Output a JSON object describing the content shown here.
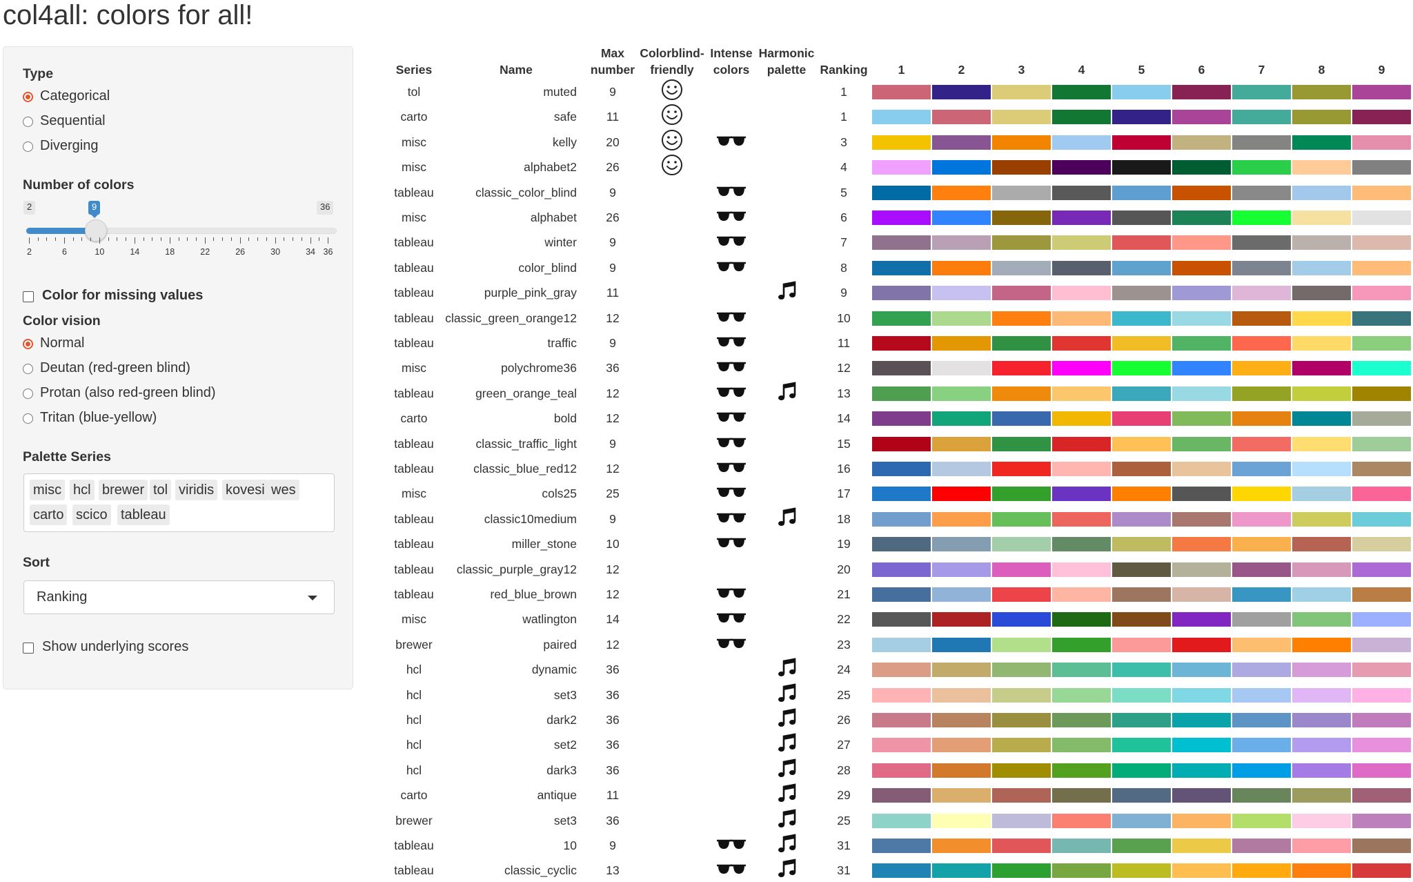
{
  "app": {
    "title": "col4all: colors for all!"
  },
  "sidebar": {
    "type": {
      "label": "Type",
      "options": [
        "Categorical",
        "Sequential",
        "Diverging"
      ],
      "selected": "Categorical"
    },
    "num_colors": {
      "label": "Number of colors",
      "min_label": "2",
      "value_label": "9",
      "max_label": "36",
      "value": 9,
      "min": 2,
      "max": 36,
      "tick_labels": [
        "2",
        "6",
        "10",
        "14",
        "18",
        "22",
        "26",
        "30",
        "34",
        "36"
      ]
    },
    "missing": {
      "label": "Color for missing values",
      "checked": false
    },
    "vision": {
      "label": "Color vision",
      "options": [
        "Normal",
        "Deutan (red-green blind)",
        "Protan (also red-green blind)",
        "Tritan (blue-yellow)"
      ],
      "selected": "Normal"
    },
    "series": {
      "label": "Palette Series",
      "chips": [
        "misc",
        "hcl",
        "brewer",
        "tol",
        "viridis",
        "kovesi",
        "wes",
        "carto",
        "scico",
        "tableau"
      ]
    },
    "sort": {
      "label": "Sort",
      "value": "Ranking"
    },
    "scores": {
      "label": "Show underlying scores",
      "checked": false
    }
  },
  "table": {
    "headers": {
      "series": "Series",
      "name": "Name",
      "max_l1": "Max",
      "max_l2": "number",
      "cbf_l1": "Colorblind-",
      "cbf_l2": "friendly",
      "int_l1": "Intense",
      "int_l2": "colors",
      "harm_l1": "Harmonic",
      "harm_l2": "palette",
      "ranking": "Ranking",
      "color_cols": [
        "1",
        "2",
        "3",
        "4",
        "5",
        "6",
        "7",
        "8",
        "9"
      ]
    },
    "rows": [
      {
        "series": "tol",
        "name": "muted",
        "max": "9",
        "cbf": true,
        "intense": false,
        "harmonic": false,
        "rank": "1",
        "colors": [
          "#CC6677",
          "#332288",
          "#DDCC77",
          "#117733",
          "#88CCEE",
          "#882255",
          "#44AA99",
          "#999933",
          "#AA4499"
        ]
      },
      {
        "series": "carto",
        "name": "safe",
        "max": "11",
        "cbf": true,
        "intense": false,
        "harmonic": false,
        "rank": "1",
        "colors": [
          "#88CCEE",
          "#CC6677",
          "#DDCC77",
          "#117733",
          "#332288",
          "#AA4499",
          "#44AA99",
          "#999933",
          "#882255"
        ]
      },
      {
        "series": "misc",
        "name": "kelly",
        "max": "20",
        "cbf": true,
        "intense": true,
        "harmonic": false,
        "rank": "3",
        "colors": [
          "#F3C300",
          "#875692",
          "#F38400",
          "#A1CAF1",
          "#BE0032",
          "#C2B280",
          "#848482",
          "#008856",
          "#E68FAC"
        ]
      },
      {
        "series": "misc",
        "name": "alphabet2",
        "max": "26",
        "cbf": true,
        "intense": false,
        "harmonic": false,
        "rank": "4",
        "colors": [
          "#F0A0FF",
          "#0075DC",
          "#993F00",
          "#4C005C",
          "#191919",
          "#005C31",
          "#2BCE48",
          "#FFCC99",
          "#808080"
        ]
      },
      {
        "series": "tableau",
        "name": "classic_color_blind",
        "max": "9",
        "cbf": false,
        "intense": true,
        "harmonic": false,
        "rank": "5",
        "colors": [
          "#006BA4",
          "#FF800E",
          "#ABABAB",
          "#595959",
          "#5F9ED1",
          "#C85200",
          "#898989",
          "#A2C8EC",
          "#FFBC79"
        ]
      },
      {
        "series": "misc",
        "name": "alphabet",
        "max": "26",
        "cbf": false,
        "intense": true,
        "harmonic": false,
        "rank": "6",
        "colors": [
          "#AA0DFE",
          "#3283FE",
          "#85660D",
          "#782AB6",
          "#565656",
          "#1C8356",
          "#16FF32",
          "#F7E1A0",
          "#E2E2E2"
        ]
      },
      {
        "series": "tableau",
        "name": "winter",
        "max": "9",
        "cbf": false,
        "intense": true,
        "harmonic": false,
        "rank": "7",
        "colors": [
          "#90728F",
          "#B9A0B4",
          "#9D983D",
          "#CECB76",
          "#E15759",
          "#FF9888",
          "#6B6B6B",
          "#BAB0AC",
          "#DDB8AD"
        ]
      },
      {
        "series": "tableau",
        "name": "color_blind",
        "max": "9",
        "cbf": false,
        "intense": true,
        "harmonic": false,
        "rank": "8",
        "colors": [
          "#1170AA",
          "#FC7D0B",
          "#A3ACB9",
          "#57606C",
          "#5FA2CE",
          "#C85200",
          "#7B848F",
          "#A3CCE9",
          "#FFBC79"
        ]
      },
      {
        "series": "tableau",
        "name": "purple_pink_gray",
        "max": "11",
        "cbf": false,
        "intense": false,
        "harmonic": true,
        "rank": "9",
        "colors": [
          "#8074A8",
          "#C6C1F0",
          "#C46487",
          "#FFBED1",
          "#9C9290",
          "#9F99D6",
          "#DFB6D7",
          "#746A6A",
          "#F797B9"
        ]
      },
      {
        "series": "tableau",
        "name": "classic_green_orange12",
        "max": "12",
        "cbf": false,
        "intense": true,
        "harmonic": false,
        "rank": "10",
        "colors": [
          "#32A251",
          "#ACD98D",
          "#FF7F0F",
          "#FFB977",
          "#3CB7CC",
          "#98D9E4",
          "#B85A0D",
          "#FFD94A",
          "#39737C"
        ]
      },
      {
        "series": "tableau",
        "name": "traffic",
        "max": "9",
        "cbf": false,
        "intense": true,
        "harmonic": false,
        "rank": "11",
        "colors": [
          "#B60A1C",
          "#E39802",
          "#309143",
          "#E03531",
          "#F0BD27",
          "#51B364",
          "#FF684C",
          "#FFDA66",
          "#8ACE7E"
        ]
      },
      {
        "series": "misc",
        "name": "polychrome36",
        "max": "36",
        "cbf": false,
        "intense": true,
        "harmonic": false,
        "rank": "12",
        "colors": [
          "#5A5156",
          "#E4E1E3",
          "#F6222E",
          "#FE00FA",
          "#16FF32",
          "#3283FE",
          "#FEAF16",
          "#B00068",
          "#1CFFCE"
        ]
      },
      {
        "series": "tableau",
        "name": "green_orange_teal",
        "max": "12",
        "cbf": false,
        "intense": true,
        "harmonic": true,
        "rank": "13",
        "colors": [
          "#4E9F50",
          "#87D180",
          "#EF8A0C",
          "#FCC66D",
          "#3CA8BC",
          "#98D9E4",
          "#94A323",
          "#C3CE3D",
          "#A08400"
        ]
      },
      {
        "series": "carto",
        "name": "bold",
        "max": "12",
        "cbf": false,
        "intense": true,
        "harmonic": false,
        "rank": "14",
        "colors": [
          "#7F3C8D",
          "#11A579",
          "#3969AC",
          "#F2B701",
          "#E73F74",
          "#80BA5A",
          "#E68310",
          "#008695",
          "#A5AA99"
        ]
      },
      {
        "series": "tableau",
        "name": "classic_traffic_light",
        "max": "9",
        "cbf": false,
        "intense": true,
        "harmonic": false,
        "rank": "15",
        "colors": [
          "#B10318",
          "#DBA13A",
          "#309343",
          "#D82526",
          "#FFC156",
          "#69B764",
          "#F26C64",
          "#FFDD71",
          "#9FCD99"
        ]
      },
      {
        "series": "tableau",
        "name": "classic_blue_red12",
        "max": "12",
        "cbf": false,
        "intense": true,
        "harmonic": false,
        "rank": "16",
        "colors": [
          "#2C69B0",
          "#B5C8E2",
          "#F02720",
          "#FFB6B0",
          "#AC613C",
          "#E9C39B",
          "#6BA3D6",
          "#B5DFFD",
          "#AC8763"
        ]
      },
      {
        "series": "misc",
        "name": "cols25",
        "max": "25",
        "cbf": false,
        "intense": true,
        "harmonic": false,
        "rank": "17",
        "colors": [
          "#1F78C8",
          "#FF0000",
          "#33A02C",
          "#6A33C2",
          "#FF7F00",
          "#565656",
          "#FFD700",
          "#A6CEE3",
          "#FB6496"
        ]
      },
      {
        "series": "tableau",
        "name": "classic10medium",
        "max": "9",
        "cbf": false,
        "intense": true,
        "harmonic": true,
        "rank": "18",
        "colors": [
          "#729ECE",
          "#FF9E4A",
          "#67BF5C",
          "#ED665D",
          "#AD8BC9",
          "#A8786E",
          "#ED97CA",
          "#CDCC5D",
          "#6DCCDA"
        ]
      },
      {
        "series": "tableau",
        "name": "miller_stone",
        "max": "10",
        "cbf": false,
        "intense": true,
        "harmonic": false,
        "rank": "19",
        "colors": [
          "#4F6980",
          "#849DB1",
          "#A2CEAA",
          "#638B66",
          "#BFBB60",
          "#F47942",
          "#FBB04E",
          "#B66353",
          "#D7CE9F"
        ]
      },
      {
        "series": "tableau",
        "name": "classic_purple_gray12",
        "max": "12",
        "cbf": false,
        "intense": false,
        "harmonic": false,
        "rank": "20",
        "colors": [
          "#7B66D2",
          "#A699E8",
          "#DC5FBD",
          "#FFC0DA",
          "#5F5A41",
          "#B4B19B",
          "#995688",
          "#D898BA",
          "#AB6AD5"
        ]
      },
      {
        "series": "tableau",
        "name": "red_blue_brown",
        "max": "12",
        "cbf": false,
        "intense": true,
        "harmonic": false,
        "rank": "21",
        "colors": [
          "#466F9D",
          "#91B3D7",
          "#ED444A",
          "#FEB5A2",
          "#9D7660",
          "#D7B5A6",
          "#3896C3",
          "#9FD0E5",
          "#BA7E45"
        ]
      },
      {
        "series": "misc",
        "name": "watlington",
        "max": "14",
        "cbf": false,
        "intense": true,
        "harmonic": false,
        "rank": "22",
        "colors": [
          "#575757",
          "#AD2323",
          "#2A4BD7",
          "#1D6914",
          "#814A19",
          "#8126C0",
          "#A0A0A0",
          "#81C57A",
          "#9DAFFF"
        ]
      },
      {
        "series": "brewer",
        "name": "paired",
        "max": "12",
        "cbf": false,
        "intense": true,
        "harmonic": false,
        "rank": "23",
        "colors": [
          "#A6CEE3",
          "#1F78B4",
          "#B2DF8A",
          "#33A02C",
          "#FB9A99",
          "#E31A1C",
          "#FDBF6F",
          "#FF7F00",
          "#CAB2D6"
        ]
      },
      {
        "series": "hcl",
        "name": "dynamic",
        "max": "36",
        "cbf": false,
        "intense": false,
        "harmonic": true,
        "rank": "24",
        "colors": [
          "#DB9D85",
          "#C2AB6A",
          "#91B770",
          "#5BBE94",
          "#3DBEAB",
          "#6CB5D6",
          "#ADA9E1",
          "#D59CD9",
          "#E69BB0"
        ]
      },
      {
        "series": "hcl",
        "name": "set3",
        "max": "36",
        "cbf": false,
        "intense": false,
        "harmonic": true,
        "rank": "25",
        "colors": [
          "#FFB3B5",
          "#EBC09D",
          "#C8CC8B",
          "#97D897",
          "#7BDDC3",
          "#7FD8E3",
          "#A7C8F3",
          "#E0B6F4",
          "#FFB0E4"
        ]
      },
      {
        "series": "hcl",
        "name": "dark2",
        "max": "36",
        "cbf": false,
        "intense": false,
        "harmonic": true,
        "rank": "26",
        "colors": [
          "#C87A8A",
          "#B8845F",
          "#9A8F3F",
          "#6D9A5A",
          "#2DA187",
          "#0AA3A9",
          "#5D94C6",
          "#9A88CB",
          "#C17CBD"
        ]
      },
      {
        "series": "hcl",
        "name": "set2",
        "max": "36",
        "cbf": false,
        "intense": false,
        "harmonic": true,
        "rank": "27",
        "colors": [
          "#EF94A6",
          "#E39E75",
          "#B9AC4C",
          "#83BB6A",
          "#20C29B",
          "#00BFD1",
          "#6AAEEA",
          "#B39CEF",
          "#E890DE"
        ]
      },
      {
        "series": "hcl",
        "name": "dark3",
        "max": "36",
        "cbf": false,
        "intense": false,
        "harmonic": true,
        "rank": "28",
        "colors": [
          "#E16A86",
          "#D3792B",
          "#A08E00",
          "#54A120",
          "#00AC77",
          "#00ADB2",
          "#009EE5",
          "#A57BE6",
          "#DE6CC7"
        ]
      },
      {
        "series": "carto",
        "name": "antique",
        "max": "11",
        "cbf": false,
        "intense": false,
        "harmonic": true,
        "rank": "29",
        "colors": [
          "#855C75",
          "#D9AF6B",
          "#AF6458",
          "#736F4C",
          "#526A83",
          "#625377",
          "#68855C",
          "#9C9C5E",
          "#A06177"
        ]
      },
      {
        "series": "brewer",
        "name": "set3",
        "max": "36",
        "cbf": false,
        "intense": false,
        "harmonic": true,
        "rank": "25",
        "colors": [
          "#8DD3C7",
          "#FFFFB3",
          "#BEBADA",
          "#FB8072",
          "#80B1D3",
          "#FDB462",
          "#B3DE69",
          "#FCCDE5",
          "#BC80BD"
        ]
      },
      {
        "series": "tableau",
        "name": "10",
        "max": "9",
        "cbf": false,
        "intense": true,
        "harmonic": true,
        "rank": "31",
        "colors": [
          "#4E79A7",
          "#F28E2B",
          "#E15759",
          "#76B7B2",
          "#59A14F",
          "#EDC948",
          "#B07AA1",
          "#FF9DA7",
          "#9C755F"
        ]
      },
      {
        "series": "tableau",
        "name": "classic_cyclic",
        "max": "13",
        "cbf": false,
        "intense": true,
        "harmonic": true,
        "rank": "31",
        "colors": [
          "#1F83B4",
          "#12A2A8",
          "#2CA030",
          "#78A641",
          "#BCBD22",
          "#FFBF50",
          "#FFAA0E",
          "#FF7F0E",
          "#D63A3A"
        ]
      }
    ]
  }
}
